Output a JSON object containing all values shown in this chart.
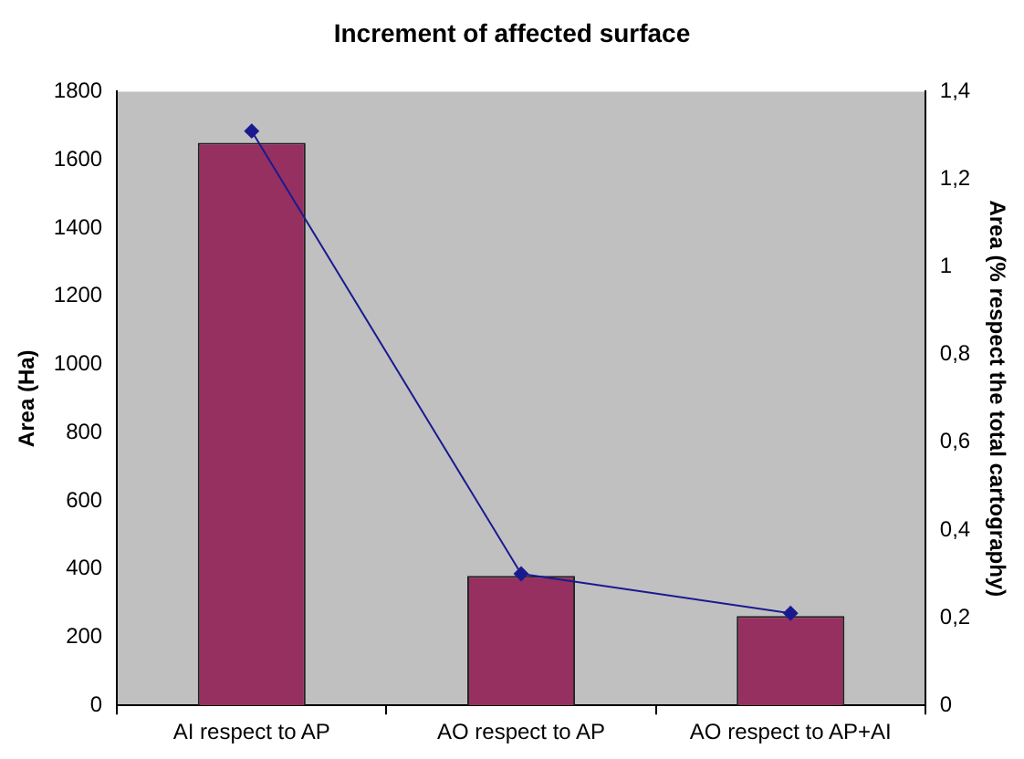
{
  "chart_data": {
    "type": "bar",
    "title": "Increment of affected surface",
    "ylabel": "Area (Ha)",
    "y2label": "Area (% respect the total cartography)",
    "categories": [
      "AI respect to AP",
      "AO respect to AP",
      "AO respect to AP+AI"
    ],
    "series": [
      {
        "color": "#953060",
        "values": [
          1650,
          380,
          262
        ]
      },
      {
        "type": "line",
        "axis": "y2",
        "color": "#1a1a90",
        "marker": "diamond",
        "values": [
          1.31,
          0.3,
          0.21
        ]
      }
    ],
    "ylim": [
      0,
      1800
    ],
    "yticks": [
      0,
      200,
      400,
      600,
      800,
      1000,
      1200,
      1400,
      1600,
      1800
    ],
    "y2lim": [
      0,
      1.4
    ],
    "y2ticks": [
      0,
      {
        "value": 0.2,
        "label": "0,2"
      },
      {
        "value": 0.4,
        "label": "0,4"
      },
      {
        "value": 0.6,
        "label": "0,6"
      },
      {
        "value": 0.8,
        "label": "0,8"
      },
      1,
      {
        "value": 1.2,
        "label": "1,2"
      },
      {
        "value": 1.4,
        "label": "1,4"
      }
    ],
    "grid": false,
    "legend": false
  }
}
